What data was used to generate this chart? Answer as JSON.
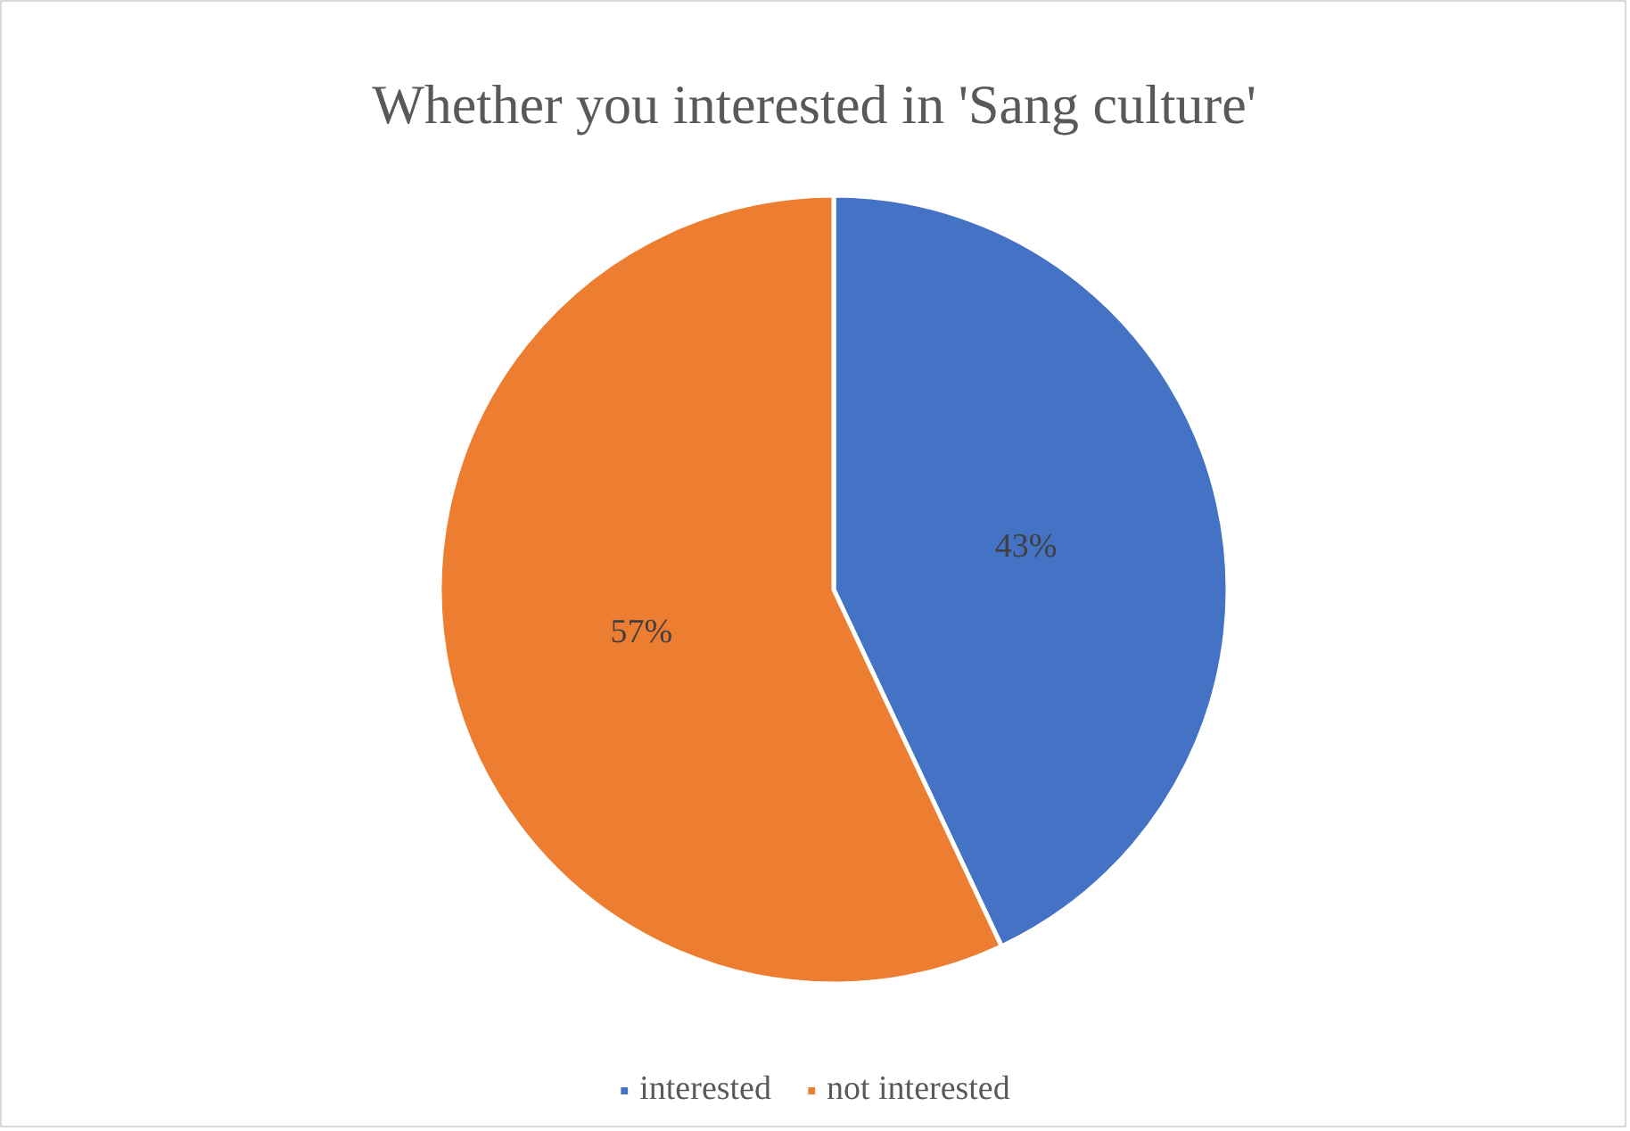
{
  "chart_data": {
    "type": "pie",
    "title": "Whether you interested in 'Sang culture'",
    "categories": [
      "interested",
      "not interested"
    ],
    "values": [
      43,
      57
    ],
    "colors": [
      "#4472c4",
      "#ed7d31"
    ],
    "value_labels": [
      "43%",
      "57%"
    ],
    "legend": "bottom"
  }
}
